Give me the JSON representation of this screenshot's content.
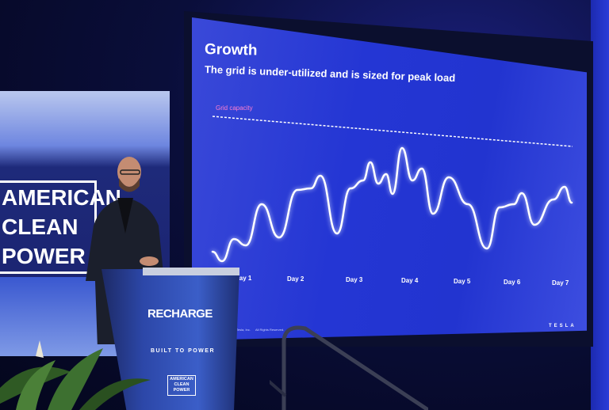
{
  "slide": {
    "title": "Growth",
    "subtitle": "The grid is under-utilized and is sized for peak load",
    "grid_capacity_label": "Grid capacity",
    "x_labels": [
      "Day 1",
      "Day 2",
      "Day 3",
      "Day 4",
      "Day 5",
      "Day 6",
      "Day 7"
    ],
    "footer_copyright": "©2023 Tesla, Inc.",
    "footer_rights": "All Rights Reserved.",
    "brand": "TESLA",
    "colors": {
      "background": "#2436d4",
      "line": "#ffffff",
      "grid_capacity": "#ff7fd0"
    }
  },
  "banner": {
    "logo_lines": [
      "AMERICAN",
      "CLEAN",
      "POWER"
    ]
  },
  "podium": {
    "title": "RECHARGE",
    "tagline": "BUILT TO POWER",
    "logo_lines": [
      "AMERICAN",
      "CLEAN",
      "POWER"
    ]
  }
}
